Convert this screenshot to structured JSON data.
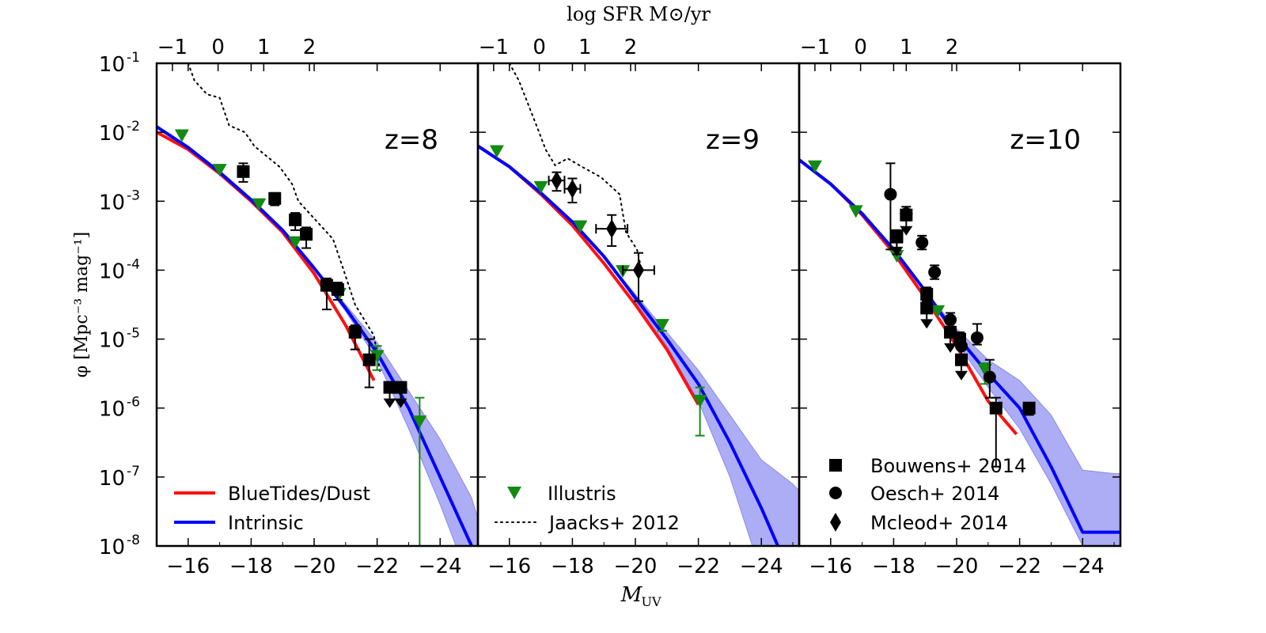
{
  "figure": {
    "top_axis_label": "log SFR M⊙/yr",
    "x_label": "M",
    "x_label_sub": "UV",
    "y_label": "φ [Mpc⁻³ mag⁻¹]",
    "y_exponents": [
      "-1",
      "-2",
      "-3",
      "-4",
      "-5",
      "-6",
      "-7",
      "-8"
    ],
    "y_base": "10",
    "x_ticks": [
      "−16",
      "−18",
      "−20",
      "−22",
      "−24"
    ],
    "top_ticks": [
      "−1",
      "0",
      "1",
      "2"
    ],
    "colors": {
      "bluetides": "#ff1010",
      "intrinsic": "#0000ff",
      "band": "#4a4ae8",
      "illustris": "#138a13",
      "obs": "#000000"
    }
  },
  "chart_data": [
    {
      "type": "line",
      "panel_label": "z=8",
      "xlim": [
        -15,
        -25.2
      ],
      "ylim_log10": [
        -8,
        -1
      ],
      "top_axis_log_sfr_ticks": [
        -1,
        0,
        1,
        2
      ],
      "legend": {
        "position": "lower-left",
        "entries": [
          "BlueTides/Dust",
          "Intrinsic"
        ]
      },
      "series": [
        {
          "name": "BlueTides/Dust",
          "kind": "line",
          "x": [
            -15,
            -16,
            -17,
            -18,
            -19,
            -20,
            -21,
            -21.9
          ],
          "log_y": [
            -2.0,
            -2.25,
            -2.6,
            -3.0,
            -3.45,
            -4.05,
            -4.8,
            -5.6
          ]
        },
        {
          "name": "Intrinsic",
          "kind": "line",
          "x": [
            -15,
            -16,
            -17,
            -18,
            -19,
            -20,
            -21,
            -22,
            -23,
            -24,
            -25,
            -25.2
          ],
          "log_y": [
            -1.92,
            -2.22,
            -2.58,
            -2.98,
            -3.42,
            -3.97,
            -4.55,
            -5.2,
            -6.0,
            -7.0,
            -8.0,
            -8.2
          ]
        },
        {
          "name": "Intrinsic range",
          "kind": "band",
          "x": [
            -15,
            -16,
            -17,
            -18,
            -19,
            -20,
            -21,
            -22,
            -23,
            -24,
            -25,
            -25.2
          ],
          "log_y_low": [
            -1.92,
            -2.22,
            -2.58,
            -2.98,
            -3.42,
            -3.97,
            -4.6,
            -5.3,
            -6.3,
            -7.4,
            -8.6,
            -9
          ],
          "log_y_high": [
            -1.92,
            -2.22,
            -2.58,
            -2.98,
            -3.42,
            -3.97,
            -4.5,
            -5.05,
            -5.75,
            -6.45,
            -7.3,
            -7.6
          ]
        },
        {
          "name": "Illustris",
          "kind": "marker",
          "x": [
            -15.8,
            -17,
            -18.25,
            -19.4,
            -20.8,
            -22.0,
            -23.35
          ],
          "log_y": [
            -2.05,
            -2.55,
            -3.05,
            -3.6,
            -4.35,
            -5.25,
            -6.2
          ],
          "log_y_err_low": [
            null,
            null,
            null,
            null,
            null,
            0.2,
            3
          ],
          "log_y_err_high": [
            null,
            null,
            null,
            null,
            null,
            0.15,
            0.35
          ]
        },
        {
          "name": "Bouwens+ 2014",
          "kind": "marker",
          "x": [
            -17.75,
            -18.75,
            -19.4,
            -19.75,
            -20.4,
            -20.75,
            -21.3,
            -21.75
          ],
          "log_y": [
            -2.57,
            -2.96,
            -3.27,
            -3.48,
            -4.22,
            -4.28,
            -4.9,
            -5.3
          ],
          "log_y_err_low": [
            0.15,
            0.1,
            0.15,
            0.2,
            0.35,
            0.15,
            0.25,
            0.4
          ],
          "log_y_err_high": [
            0.12,
            0.08,
            0.1,
            0.1,
            0.1,
            0.1,
            0.1,
            0.3
          ]
        },
        {
          "name": "Bouwens+ 2014 (upper limits)",
          "kind": "upper_limit",
          "x": [
            -22.4,
            -22.75
          ],
          "log_y": [
            -5.7,
            -5.7
          ]
        },
        {
          "name": "Jaacks+ 2012",
          "kind": "dotted",
          "x": [
            -16,
            -16.2,
            -16.6,
            -17.0,
            -17.3,
            -17.8,
            -18.1,
            -18.9,
            -19.3,
            -19.5,
            -19.9,
            -20.6,
            -20.9,
            -21.3,
            -21.9,
            -22.1
          ],
          "log_y": [
            -1.0,
            -1.25,
            -1.45,
            -1.5,
            -1.9,
            -2.0,
            -2.2,
            -2.5,
            -2.75,
            -3.0,
            -3.2,
            -3.55,
            -3.95,
            -4.5,
            -4.95,
            -5.5
          ]
        }
      ]
    },
    {
      "type": "line",
      "panel_label": "z=9",
      "xlim": [
        -15,
        -25.2
      ],
      "ylim_log10": [
        -8,
        -1
      ],
      "top_axis_log_sfr_ticks": [
        -1,
        0,
        1,
        2
      ],
      "legend": {
        "position": "lower-left",
        "entries": [
          "Illustris",
          "Jaacks+ 2012"
        ]
      },
      "series": [
        {
          "name": "BlueTides/Dust",
          "kind": "line",
          "x": [
            -15,
            -16,
            -17,
            -18,
            -19,
            -20,
            -21,
            -22
          ],
          "log_y": [
            -2.2,
            -2.5,
            -2.9,
            -3.35,
            -3.9,
            -4.5,
            -5.15,
            -5.95
          ]
        },
        {
          "name": "Intrinsic",
          "kind": "line",
          "x": [
            -15,
            -16,
            -17,
            -18,
            -19,
            -20,
            -21,
            -22,
            -23,
            -24,
            -25,
            -25.2
          ],
          "log_y": [
            -2.2,
            -2.5,
            -2.88,
            -3.3,
            -3.8,
            -4.4,
            -5.0,
            -5.65,
            -6.5,
            -7.45,
            -8.5,
            -8.7
          ]
        },
        {
          "name": "Intrinsic range",
          "kind": "band",
          "x": [
            -15,
            -16,
            -17,
            -18,
            -19,
            -20,
            -21,
            -22,
            -23,
            -24,
            -25,
            -25.2
          ],
          "log_y_low": [
            -2.2,
            -2.5,
            -2.88,
            -3.3,
            -3.8,
            -4.45,
            -5.1,
            -5.9,
            -7.0,
            -8.4,
            -9.5,
            -9.5
          ],
          "log_y_high": [
            -2.2,
            -2.5,
            -2.88,
            -3.3,
            -3.8,
            -4.35,
            -4.9,
            -5.45,
            -6.1,
            -6.75,
            -7.1,
            -7.2
          ]
        },
        {
          "name": "Illustris",
          "kind": "marker",
          "x": [
            -15.6,
            -17,
            -18.25,
            -19.6,
            -20.85,
            -22.05
          ],
          "log_y": [
            -2.28,
            -2.8,
            -3.37,
            -4.02,
            -4.8,
            -5.9
          ],
          "log_y_err_low": [
            null,
            null,
            null,
            null,
            0.08,
            0.5
          ],
          "log_y_err_high": [
            null,
            null,
            null,
            null,
            0.06,
            0.2
          ]
        },
        {
          "name": "Mcleod+ 2014",
          "kind": "marker",
          "x": [
            -17.5,
            -18.0,
            -19.25,
            -20.1
          ],
          "log_y": [
            -2.7,
            -2.82,
            -3.4,
            -4.0
          ],
          "log_y_err_low": [
            0.15,
            0.2,
            0.25,
            0.45
          ],
          "log_y_err_high": [
            0.12,
            0.15,
            0.2,
            0.25
          ],
          "x_err": [
            0.25,
            0.25,
            0.5,
            0.5
          ]
        },
        {
          "name": "Jaacks+ 2012",
          "kind": "dotted",
          "x": [
            -16,
            -16.3,
            -16.6,
            -16.9,
            -17.15,
            -17.45,
            -17.85,
            -18.3,
            -18.9,
            -19.5,
            -19.7,
            -20.05,
            -20.2
          ],
          "log_y": [
            -1.0,
            -1.25,
            -1.6,
            -1.95,
            -2.25,
            -2.48,
            -2.38,
            -2.5,
            -2.65,
            -2.9,
            -3.45,
            -3.7,
            -4.0
          ]
        }
      ]
    },
    {
      "type": "line",
      "panel_label": "z=10",
      "xlim": [
        -15,
        -25.2
      ],
      "ylim_log10": [
        -8,
        -1
      ],
      "top_axis_log_sfr_ticks": [
        -1,
        0,
        1,
        2
      ],
      "legend": {
        "position": "lower-left",
        "entries": [
          "Bouwens+ 2014",
          "Oesch+ 2014",
          "Mcleod+ 2014"
        ]
      },
      "series": [
        {
          "name": "BlueTides/Dust",
          "kind": "line",
          "x": [
            -15,
            -16,
            -17,
            -18,
            -19,
            -20,
            -21,
            -21.9
          ],
          "log_y": [
            -2.4,
            -2.75,
            -3.2,
            -3.75,
            -4.4,
            -5.1,
            -5.9,
            -6.38
          ]
        },
        {
          "name": "Intrinsic",
          "kind": "line",
          "x": [
            -15,
            -16,
            -17,
            -18,
            -19,
            -20,
            -21,
            -22,
            -23,
            -24,
            -25,
            -25.2
          ],
          "log_y": [
            -2.4,
            -2.75,
            -3.18,
            -3.7,
            -4.3,
            -4.95,
            -5.5,
            -6.0,
            -6.85,
            -7.8,
            -7.8,
            -7.8
          ]
        },
        {
          "name": "Intrinsic range",
          "kind": "band",
          "x": [
            -15,
            -16,
            -17,
            -18,
            -19,
            -20,
            -21,
            -22,
            -23,
            -24,
            -25,
            -25.2
          ],
          "log_y_low": [
            -2.4,
            -2.75,
            -3.18,
            -3.7,
            -4.3,
            -5.05,
            -5.7,
            -6.3,
            -7.1,
            -8.0,
            -8.0,
            -8.0
          ],
          "log_y_high": [
            -2.4,
            -2.75,
            -3.18,
            -3.7,
            -4.3,
            -4.85,
            -5.3,
            -5.6,
            -6.1,
            -6.9,
            -6.95,
            -6.95
          ]
        },
        {
          "name": "Illustris",
          "kind": "marker",
          "x": [
            -15.5,
            -16.8,
            -18.1,
            -19.4,
            -20.9
          ],
          "log_y": [
            -2.5,
            -3.15,
            -3.8,
            -4.6,
            -5.45
          ],
          "log_y_err_low": [
            null,
            null,
            null,
            null,
            0.2
          ],
          "log_y_err_high": [
            null,
            null,
            null,
            null,
            0.1
          ]
        },
        {
          "name": "Bouwens+ 2014",
          "kind": "marker",
          "x": [
            -18.1,
            -19.05,
            -20.1,
            -21.25,
            -22.3
          ],
          "log_y": [
            -3.52,
            -4.35,
            -5.0,
            -6.0,
            -6.0
          ],
          "log_y_err_low": [
            0.25,
            0.1,
            0.1,
            0.85,
            0.1
          ],
          "log_y_err_high": [
            0.1,
            0.1,
            0.1,
            0.15,
            0.05
          ]
        },
        {
          "name": "Oesch+ 2014",
          "kind": "marker",
          "x": [
            -17.9,
            -18.4,
            -18.9,
            -19.3,
            -19.8,
            -20.15,
            -20.65,
            -21.05
          ],
          "log_y": [
            -2.9,
            -3.18,
            -3.6,
            -4.03,
            -4.72,
            -5.1,
            -4.98,
            -5.55
          ],
          "log_y_err_low": [
            0.8,
            0.1,
            0.1,
            0.1,
            0.1,
            0.2,
            0.1,
            0.3
          ],
          "log_y_err_high": [
            0.45,
            0.1,
            0.1,
            0.1,
            0.1,
            0.1,
            0.2,
            0.25
          ]
        },
        {
          "name": "Upper limits",
          "kind": "upper_limit",
          "x": [
            -18.1,
            -18.4,
            -19.05,
            -19.8,
            -20.15
          ],
          "log_y": [
            -3.5,
            -3.2,
            -4.55,
            -4.9,
            -5.3
          ]
        }
      ]
    }
  ]
}
